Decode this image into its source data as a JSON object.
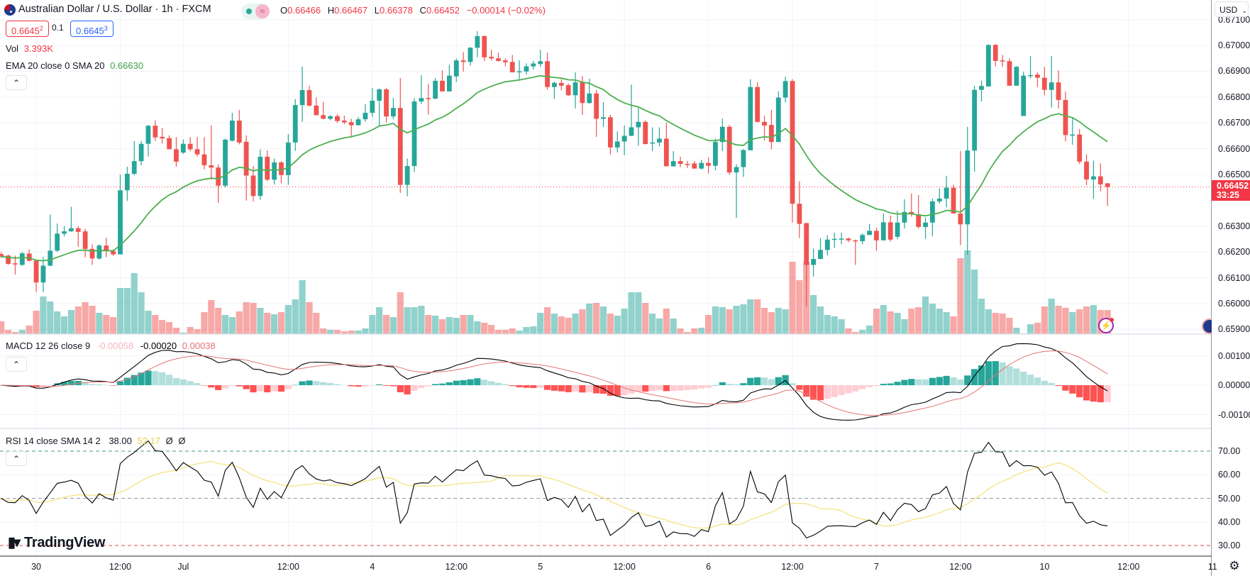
{
  "header": {
    "title": "Australian Dollar / U.S. Dollar · 1h · FXCM",
    "status_icon": "market-open-dot",
    "o_label": "O",
    "o": "0.66466",
    "h_label": "H",
    "h": "0.66467",
    "l_label": "L",
    "l": "0.66378",
    "c_label": "C",
    "c": "0.66452",
    "change": "−0.00014 (−0.02%)",
    "sell_main": "0.6645",
    "sell_sup": "2",
    "spread": "0.1",
    "buy_main": "0.6645",
    "buy_sup": "3",
    "vol_label": "Vol",
    "vol_value": "3.393K",
    "ema_label": "EMA 20 close 0 SMA 20",
    "ema_value": "0.66630",
    "collapse_glyph": "⌃"
  },
  "macd_header": {
    "label": "MACD 12 26 close 9",
    "hist": "-0.00058",
    "macd": "-0.00020",
    "signal": "0.00038"
  },
  "rsi_header": {
    "label": "RSI 14 close SMA 14 2",
    "rsi": "38.00",
    "sma": "52.17",
    "extra1": "Ø",
    "extra2": "Ø"
  },
  "currency_button": "USD",
  "current_price": {
    "price": "0.66452",
    "countdown": "33:25"
  },
  "logo_text": "TradingView",
  "colors": {
    "up": "#26a69a",
    "down": "#ef5350",
    "ema": "#4caf50",
    "macd": "#000000",
    "signal": "#e57373",
    "rsi": "#000000",
    "rsi_sma": "#f5e58c"
  },
  "chart_data": {
    "type": "candlestick",
    "title": "Australian Dollar / U.S. Dollar · 1h · FXCM",
    "candle_format": [
      "open",
      "high",
      "low",
      "close"
    ],
    "candles": [
      [
        0.66192,
        0.662,
        0.66178,
        0.66182
      ],
      [
        0.66186,
        0.6619,
        0.6615,
        0.66154
      ],
      [
        0.66156,
        0.66186,
        0.66113,
        0.66152
      ],
      [
        0.6615,
        0.662,
        0.66147,
        0.66195
      ],
      [
        0.66194,
        0.6621,
        0.66163,
        0.66166
      ],
      [
        0.66166,
        0.66168,
        0.66045,
        0.66082
      ],
      [
        0.66082,
        0.6618,
        0.66045,
        0.66147
      ],
      [
        0.66147,
        0.66345,
        0.66145,
        0.66205
      ],
      [
        0.66205,
        0.6631,
        0.662,
        0.66271
      ],
      [
        0.66271,
        0.663,
        0.6626,
        0.6628
      ],
      [
        0.6628,
        0.66375,
        0.66278,
        0.66292
      ],
      [
        0.66292,
        0.663,
        0.6622,
        0.66278
      ],
      [
        0.6628,
        0.6629,
        0.6618,
        0.66212
      ],
      [
        0.66212,
        0.6623,
        0.6615,
        0.66175
      ],
      [
        0.66175,
        0.6623,
        0.6617,
        0.66225
      ],
      [
        0.66225,
        0.66255,
        0.6618,
        0.66203
      ],
      [
        0.66203,
        0.6621,
        0.66185,
        0.66191
      ],
      [
        0.66191,
        0.665,
        0.6619,
        0.66439
      ],
      [
        0.66439,
        0.6653,
        0.66398,
        0.66503
      ],
      [
        0.66503,
        0.6663,
        0.66497,
        0.66552
      ],
      [
        0.66552,
        0.6663,
        0.66536,
        0.66619
      ],
      [
        0.66619,
        0.66692,
        0.6657,
        0.66689
      ],
      [
        0.66689,
        0.6671,
        0.6663,
        0.66644
      ],
      [
        0.66646,
        0.6668,
        0.6662,
        0.6664
      ],
      [
        0.66641,
        0.66652,
        0.66598,
        0.66598
      ],
      [
        0.66598,
        0.66645,
        0.6653,
        0.6655
      ],
      [
        0.66585,
        0.66636,
        0.6658,
        0.66619
      ],
      [
        0.66619,
        0.66645,
        0.6659,
        0.66598
      ],
      [
        0.66598,
        0.66645,
        0.6657,
        0.66578
      ],
      [
        0.66578,
        0.66645,
        0.6652,
        0.66536
      ],
      [
        0.66536,
        0.6669,
        0.6648,
        0.66527
      ],
      [
        0.66527,
        0.6654,
        0.6639,
        0.66457
      ],
      [
        0.66457,
        0.6664,
        0.6645,
        0.66635
      ],
      [
        0.66631,
        0.66739,
        0.66628,
        0.66709
      ],
      [
        0.66709,
        0.6675,
        0.66617,
        0.66624
      ],
      [
        0.66627,
        0.66652,
        0.66399,
        0.66496
      ],
      [
        0.66496,
        0.66533,
        0.66395,
        0.66417
      ],
      [
        0.66417,
        0.66597,
        0.66402,
        0.66569
      ],
      [
        0.66569,
        0.66593,
        0.66475,
        0.6648
      ],
      [
        0.6648,
        0.66562,
        0.66461,
        0.66547
      ],
      [
        0.66547,
        0.66552,
        0.66466,
        0.66498
      ],
      [
        0.66498,
        0.66657,
        0.6646,
        0.66624
      ],
      [
        0.66624,
        0.66792,
        0.66592,
        0.66769
      ],
      [
        0.66769,
        0.66918,
        0.66705,
        0.66827
      ],
      [
        0.66827,
        0.66844,
        0.66764,
        0.66767
      ],
      [
        0.66767,
        0.66799,
        0.6673,
        0.6673
      ],
      [
        0.6673,
        0.66781,
        0.66714,
        0.66716
      ],
      [
        0.66716,
        0.6673,
        0.6671,
        0.66726
      ],
      [
        0.66726,
        0.66734,
        0.667,
        0.66707
      ],
      [
        0.66709,
        0.66728,
        0.66695,
        0.66702
      ],
      [
        0.66703,
        0.66716,
        0.6665,
        0.66691
      ],
      [
        0.66691,
        0.66723,
        0.6669,
        0.66714
      ],
      [
        0.66714,
        0.66772,
        0.66705,
        0.66739
      ],
      [
        0.66739,
        0.66836,
        0.66723,
        0.66786
      ],
      [
        0.66786,
        0.66833,
        0.66689,
        0.6683
      ],
      [
        0.6683,
        0.66836,
        0.66702,
        0.66725
      ],
      [
        0.66725,
        0.66796,
        0.66714,
        0.66758
      ],
      [
        0.66758,
        0.66874,
        0.66429,
        0.6646
      ],
      [
        0.6646,
        0.66562,
        0.66416,
        0.66533
      ],
      [
        0.66533,
        0.66796,
        0.6651,
        0.66783
      ],
      [
        0.66783,
        0.66885,
        0.66773,
        0.66796
      ],
      [
        0.66796,
        0.66851,
        0.66732,
        0.66794
      ],
      [
        0.66794,
        0.66874,
        0.66792,
        0.66863
      ],
      [
        0.66863,
        0.66904,
        0.66822,
        0.66822
      ],
      [
        0.66822,
        0.66925,
        0.66822,
        0.66883
      ],
      [
        0.6688,
        0.6695,
        0.66858,
        0.66942
      ],
      [
        0.66942,
        0.66974,
        0.66899,
        0.66936
      ],
      [
        0.66936,
        0.66994,
        0.66922,
        0.66991
      ],
      [
        0.66991,
        0.67055,
        0.66954,
        0.67036
      ],
      [
        0.67036,
        0.67039,
        0.6694,
        0.66954
      ],
      [
        0.66956,
        0.66983,
        0.66942,
        0.6695
      ],
      [
        0.6695,
        0.66972,
        0.66938,
        0.6694
      ],
      [
        0.66942,
        0.66949,
        0.66919,
        0.66935
      ],
      [
        0.66936,
        0.66963,
        0.66896,
        0.66896
      ],
      [
        0.66898,
        0.66942,
        0.66869,
        0.669
      ],
      [
        0.66899,
        0.66931,
        0.66887,
        0.66919
      ],
      [
        0.66919,
        0.6694,
        0.66907,
        0.6693
      ],
      [
        0.66928,
        0.66983,
        0.66917,
        0.66939
      ],
      [
        0.66939,
        0.66972,
        0.66829,
        0.66839
      ],
      [
        0.66839,
        0.6686,
        0.66793,
        0.66855
      ],
      [
        0.66855,
        0.66869,
        0.66826,
        0.66844
      ],
      [
        0.66846,
        0.66853,
        0.66805,
        0.66807
      ],
      [
        0.66807,
        0.66896,
        0.66756,
        0.66857
      ],
      [
        0.66857,
        0.66881,
        0.66731,
        0.66777
      ],
      [
        0.66777,
        0.66871,
        0.66775,
        0.66814
      ],
      [
        0.66814,
        0.66828,
        0.66646,
        0.66716
      ],
      [
        0.66716,
        0.6678,
        0.66685,
        0.66722
      ],
      [
        0.66722,
        0.66731,
        0.66578,
        0.66605
      ],
      [
        0.66605,
        0.66667,
        0.66586,
        0.66628
      ],
      [
        0.66628,
        0.6669,
        0.66575,
        0.6665
      ],
      [
        0.6665,
        0.66848,
        0.66649,
        0.66683
      ],
      [
        0.66683,
        0.66759,
        0.66612,
        0.66704
      ],
      [
        0.66704,
        0.6671,
        0.66617,
        0.66618
      ],
      [
        0.66621,
        0.66683,
        0.66591,
        0.66624
      ],
      [
        0.66624,
        0.66683,
        0.66609,
        0.66639
      ],
      [
        0.66639,
        0.66701,
        0.66532,
        0.66532
      ],
      [
        0.66532,
        0.66591,
        0.6653,
        0.66552
      ],
      [
        0.66552,
        0.66569,
        0.66528,
        0.66541
      ],
      [
        0.66541,
        0.66552,
        0.66525,
        0.6654
      ],
      [
        0.66543,
        0.66552,
        0.66523,
        0.66523
      ],
      [
        0.66523,
        0.66557,
        0.6652,
        0.66545
      ],
      [
        0.66545,
        0.66566,
        0.66504,
        0.66534
      ],
      [
        0.66534,
        0.66639,
        0.66516,
        0.66626
      ],
      [
        0.66626,
        0.66717,
        0.66591,
        0.66685
      ],
      [
        0.66685,
        0.66692,
        0.66499,
        0.66508
      ],
      [
        0.66508,
        0.6654,
        0.66332,
        0.66529
      ],
      [
        0.66529,
        0.66598,
        0.66491,
        0.66595
      ],
      [
        0.66594,
        0.66869,
        0.66594,
        0.66839
      ],
      [
        0.66839,
        0.66858,
        0.66701,
        0.66704
      ],
      [
        0.66704,
        0.66728,
        0.66632,
        0.6669
      ],
      [
        0.66692,
        0.6675,
        0.66598,
        0.66626
      ],
      [
        0.66626,
        0.66823,
        0.66626,
        0.66798
      ],
      [
        0.66798,
        0.6688,
        0.66779,
        0.66862
      ],
      [
        0.66862,
        0.66869,
        0.66314,
        0.66387
      ],
      [
        0.66387,
        0.66474,
        0.66254,
        0.66309
      ],
      [
        0.66312,
        0.66312,
        0.65988,
        0.6615
      ],
      [
        0.6615,
        0.66213,
        0.66105,
        0.66173
      ],
      [
        0.66173,
        0.66254,
        0.66173,
        0.66208
      ],
      [
        0.66208,
        0.66265,
        0.66187,
        0.66248
      ],
      [
        0.6625,
        0.66275,
        0.66215,
        0.66251
      ],
      [
        0.66251,
        0.66275,
        0.6623,
        0.66252
      ],
      [
        0.66252,
        0.66256,
        0.66238,
        0.66245
      ],
      [
        0.66245,
        0.66248,
        0.6615,
        0.66242
      ],
      [
        0.66242,
        0.66272,
        0.6623,
        0.66266
      ],
      [
        0.66266,
        0.66309,
        0.66266,
        0.66282
      ],
      [
        0.66282,
        0.66294,
        0.66204,
        0.66245
      ],
      [
        0.66245,
        0.66349,
        0.66245,
        0.66315
      ],
      [
        0.66315,
        0.66341,
        0.6624,
        0.66248
      ],
      [
        0.66259,
        0.6636,
        0.6625,
        0.66314
      ],
      [
        0.66314,
        0.66404,
        0.66291,
        0.66355
      ],
      [
        0.66355,
        0.66427,
        0.66337,
        0.66346
      ],
      [
        0.66346,
        0.66421,
        0.66291,
        0.66297
      ],
      [
        0.66297,
        0.66334,
        0.66251,
        0.66314
      ],
      [
        0.66314,
        0.66407,
        0.66261,
        0.66396
      ],
      [
        0.66396,
        0.66447,
        0.66387,
        0.66407
      ],
      [
        0.66407,
        0.66495,
        0.66373,
        0.66449
      ],
      [
        0.66449,
        0.66461,
        0.66349,
        0.66349
      ],
      [
        0.66349,
        0.66591,
        0.66227,
        0.66307
      ],
      [
        0.66307,
        0.66685,
        0.6619,
        0.66593
      ],
      [
        0.66593,
        0.66844,
        0.66511,
        0.66828
      ],
      [
        0.66828,
        0.66864,
        0.66783,
        0.66843
      ],
      [
        0.66841,
        0.67004,
        0.66841,
        0.67002
      ],
      [
        0.67002,
        0.67005,
        0.66919,
        0.6694
      ],
      [
        0.66942,
        0.66963,
        0.66917,
        0.66939
      ],
      [
        0.66939,
        0.6695,
        0.66844,
        0.66844
      ],
      [
        0.66844,
        0.6692,
        0.66844,
        0.66917
      ],
      [
        0.66727,
        0.66898,
        0.66727,
        0.66883
      ],
      [
        0.66883,
        0.66959,
        0.66873,
        0.66885
      ],
      [
        0.66887,
        0.66896,
        0.66839,
        0.66875
      ],
      [
        0.66875,
        0.66917,
        0.66807,
        0.66828
      ],
      [
        0.66828,
        0.66959,
        0.66759,
        0.66857
      ],
      [
        0.66857,
        0.66904,
        0.66756,
        0.66789
      ],
      [
        0.66789,
        0.66821,
        0.66628,
        0.66653
      ],
      [
        0.66653,
        0.66722,
        0.66615,
        0.66655
      ],
      [
        0.66655,
        0.66676,
        0.66541,
        0.6655
      ],
      [
        0.6655,
        0.66578,
        0.66459,
        0.66481
      ],
      [
        0.66481,
        0.66554,
        0.66406,
        0.66493
      ],
      [
        0.66493,
        0.66543,
        0.66435,
        0.66462
      ],
      [
        0.66466,
        0.66467,
        0.66378,
        0.66452
      ]
    ],
    "volume_unit": "K",
    "volumes": [
      1.8,
      0.6,
      0.3,
      0.6,
      1.2,
      3.3,
      5.3,
      4.6,
      3.2,
      2.5,
      3.4,
      3.9,
      4.5,
      4.0,
      3.0,
      2.7,
      2.4,
      6.5,
      6.5,
      8.6,
      5.9,
      3.3,
      2.7,
      2.0,
      1.7,
      0.9,
      0.2,
      1.0,
      0.7,
      3.1,
      4.8,
      3.7,
      2.7,
      2.4,
      3.2,
      4.5,
      4.4,
      3.7,
      3.0,
      2.8,
      3.1,
      4.1,
      4.9,
      7.6,
      4.5,
      3.0,
      0.8,
      0.6,
      0.6,
      0.4,
      0.5,
      0.5,
      0.8,
      2.7,
      3.8,
      2.7,
      2.4,
      5.9,
      3.8,
      3.8,
      4.0,
      2.7,
      2.6,
      2.1,
      2.4,
      2.3,
      2.7,
      2.7,
      1.8,
      1.6,
      1.3,
      0.6,
      0.6,
      0.8,
      0.5,
      1.0,
      1.1,
      3.0,
      3.8,
      2.9,
      2.5,
      2.3,
      2.9,
      3.5,
      4.3,
      4.4,
      3.9,
      2.9,
      2.6,
      3.6,
      5.9,
      5.9,
      4.4,
      2.9,
      2.2,
      3.6,
      2.2,
      0.8,
      0.3,
      0.8,
      0.9,
      2.7,
      3.9,
      3.8,
      3.5,
      4.0,
      4.2,
      4.9,
      4.9,
      3.7,
      3.1,
      3.7,
      3.5,
      10.2,
      7.6,
      10.2,
      5.5,
      3.9,
      2.7,
      2.5,
      2.1,
      0.8,
      0.3,
      0.6,
      1.2,
      3.6,
      4.1,
      3.2,
      3.0,
      2.1,
      3.6,
      3.8,
      5.3,
      4.3,
      3.6,
      3.1,
      2.5,
      10.7,
      11.8,
      9.1,
      5.0,
      3.5,
      3.0,
      2.9,
      2.3,
      0.9,
      0.1,
      1.4,
      1.6,
      3.9,
      5.0,
      4.0,
      3.7,
      3.1,
      3.5,
      3.9,
      4.1,
      3.4,
      3.393
    ],
    "indicators": {
      "ema_period": 20,
      "macd": [
        12,
        26,
        9
      ],
      "rsi_period": 14,
      "rsi_sma": 14,
      "rsi_levels": [
        70,
        50,
        30
      ]
    },
    "price_ylim": [
      0.65882,
      0.67176
    ],
    "price_axis_labels": [
      "0.67100",
      "0.67000",
      "0.66900",
      "0.66800",
      "0.66700",
      "0.66600",
      "0.66500",
      "0.66300",
      "0.66200",
      "0.66100",
      "0.66000",
      "0.65900"
    ],
    "macd_axis_labels": [
      "0.00100",
      "0.00000",
      "-0.00100"
    ],
    "rsi_axis_labels": [
      "70.00",
      "60.00",
      "50.00",
      "40.00",
      "30.00"
    ],
    "time_ticks": [
      {
        "label": "30",
        "index": 5
      },
      {
        "label": "12:00",
        "index": 17
      },
      {
        "label": "Jul",
        "index": 26
      },
      {
        "label": "12:00",
        "index": 41
      },
      {
        "label": "4",
        "index": 53
      },
      {
        "label": "12:00",
        "index": 65
      },
      {
        "label": "5",
        "index": 77
      },
      {
        "label": "12:00",
        "index": 89
      },
      {
        "label": "6",
        "index": 101
      },
      {
        "label": "12:00",
        "index": 113
      },
      {
        "label": "7",
        "index": 125
      },
      {
        "label": "12:00",
        "index": 137
      },
      {
        "label": "10",
        "index": 149
      },
      {
        "label": "12:00",
        "index": 161
      },
      {
        "label": "11",
        "index": 173
      }
    ],
    "last_price": 0.66452
  }
}
